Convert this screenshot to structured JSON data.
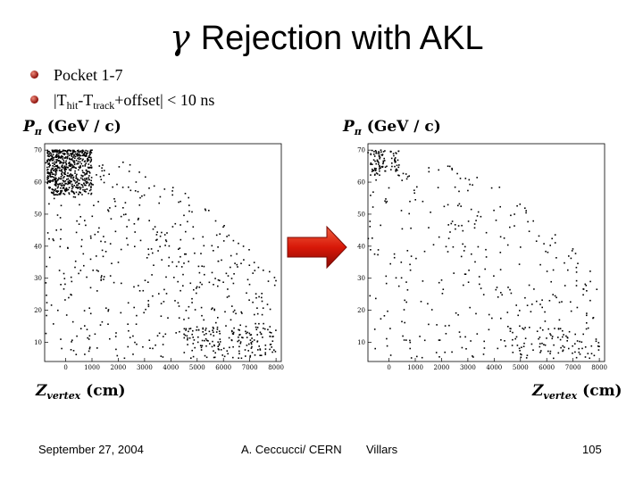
{
  "slide": {
    "title_symbol": "γ",
    "title_text": "Rejection with AKL",
    "bullets": [
      {
        "text": "Pocket 1-7"
      },
      {
        "text_pre": "|T",
        "sub1": "hit",
        "text_mid": "-T",
        "sub2": "track",
        "text_post": "+offset| < 10 ns"
      }
    ],
    "ylabel": {
      "main": "P",
      "sub": "π",
      "unit": " (GeV / c)"
    },
    "xlabel": {
      "main": "Z",
      "sub": "vertex",
      "unit": " (cm)"
    },
    "footer": {
      "date": "September 27, 2004",
      "author": "A. Ceccucci/ CERN",
      "venue": "Villars",
      "page": "105"
    },
    "colors": {
      "bullet": "#8b0f0a",
      "arrow": "#e02010",
      "points": "#000000"
    }
  },
  "chart_data": [
    {
      "type": "scatter",
      "title": "",
      "xlabel": "Z_vertex (cm)",
      "ylabel": "P_π (GeV/c)",
      "xlim": [
        -800,
        8200
      ],
      "ylim": [
        4,
        72
      ],
      "xticks": [
        0,
        1000,
        2000,
        3000,
        4000,
        5000,
        6000,
        7000,
        8000
      ],
      "xtick_labels": [
        "0",
        "1000",
        "2000",
        "3000",
        "4000",
        "5000",
        "6000",
        "7000",
        "8000"
      ],
      "yticks": [
        10,
        20,
        30,
        40,
        50,
        60,
        70
      ],
      "ytick_labels": [
        "10",
        "20",
        "30",
        "40",
        "50",
        "60",
        "70"
      ],
      "grid": false,
      "density": [
        {
          "region": "dense cluster",
          "x": [
            -700,
            1000
          ],
          "y": [
            56,
            70
          ],
          "count": 600
        },
        {
          "region": "spread",
          "x": [
            -800,
            8000
          ],
          "y": [
            5,
            70
          ],
          "count": 500
        },
        {
          "region": "low-p band",
          "x": [
            4500,
            8000
          ],
          "y": [
            5,
            15
          ],
          "count": 120
        }
      ]
    },
    {
      "type": "scatter",
      "title": "",
      "xlabel": "Z_vertex (cm)",
      "ylabel": "P_π (GeV/c)",
      "xlim": [
        -800,
        8200
      ],
      "ylim": [
        4,
        72
      ],
      "xticks": [
        0,
        1000,
        2000,
        3000,
        4000,
        5000,
        6000,
        7000,
        8000
      ],
      "xtick_labels": [
        "0",
        "1000",
        "2000",
        "3000",
        "4000",
        "5000",
        "6000",
        "7000",
        "8000"
      ],
      "yticks": [
        10,
        20,
        30,
        40,
        50,
        60,
        70
      ],
      "ytick_labels": [
        "10",
        "20",
        "30",
        "40",
        "50",
        "60",
        "70"
      ],
      "grid": false,
      "density": [
        {
          "region": "dense cluster",
          "x": [
            -700,
            400
          ],
          "y": [
            62,
            70
          ],
          "count": 90
        },
        {
          "region": "spread",
          "x": [
            -800,
            8000
          ],
          "y": [
            5,
            70
          ],
          "count": 330
        },
        {
          "region": "low-p band",
          "x": [
            4500,
            8000
          ],
          "y": [
            5,
            15
          ],
          "count": 70
        }
      ]
    }
  ]
}
